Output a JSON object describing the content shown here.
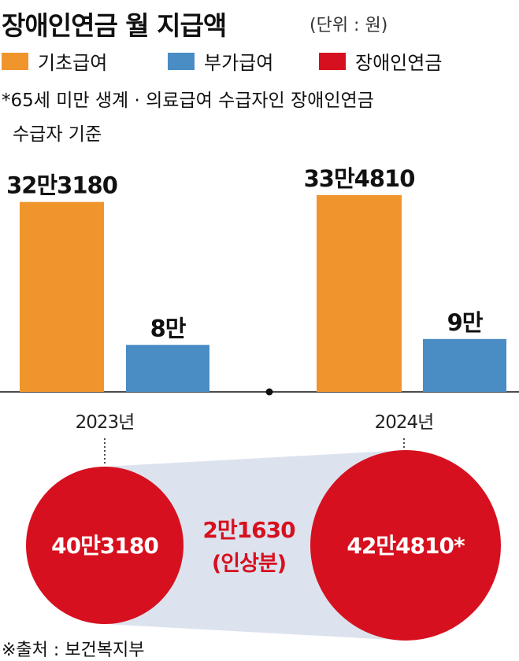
{
  "header": {
    "title": "장애인연금 월 지급액",
    "unit": "(단위 : 원)"
  },
  "legend": [
    {
      "label": "기초급여",
      "color": "#F0952B"
    },
    {
      "label": "부가급여",
      "color": "#4A8CC4"
    },
    {
      "label": "장애인연금",
      "color": "#D7101F"
    }
  ],
  "note": {
    "line1": "*65세 미만 생계 · 의료급여 수급자인 장애인연금",
    "line2": "수급자 기준"
  },
  "chart_data": {
    "type": "bar",
    "categories": [
      "2023년",
      "2024년"
    ],
    "series": [
      {
        "name": "기초급여",
        "values": [
          323180,
          334810
        ],
        "labels": [
          "32만3180",
          "33만4810"
        ],
        "color": "#F0952B"
      },
      {
        "name": "부가급여",
        "values": [
          80000,
          90000
        ],
        "labels": [
          "8만",
          "9만"
        ],
        "color": "#4A8CC4"
      }
    ],
    "totals": {
      "name": "장애인연금",
      "values": [
        403180,
        424810
      ],
      "labels": [
        "40만3180",
        "42만4810*"
      ],
      "color": "#D7101F"
    },
    "difference": {
      "value": 21630,
      "label": "2만1630",
      "sublabel": "(인상분)"
    },
    "ylim": [
      0,
      334810
    ]
  },
  "footer": {
    "source": "※출처 : 보건복지부"
  }
}
